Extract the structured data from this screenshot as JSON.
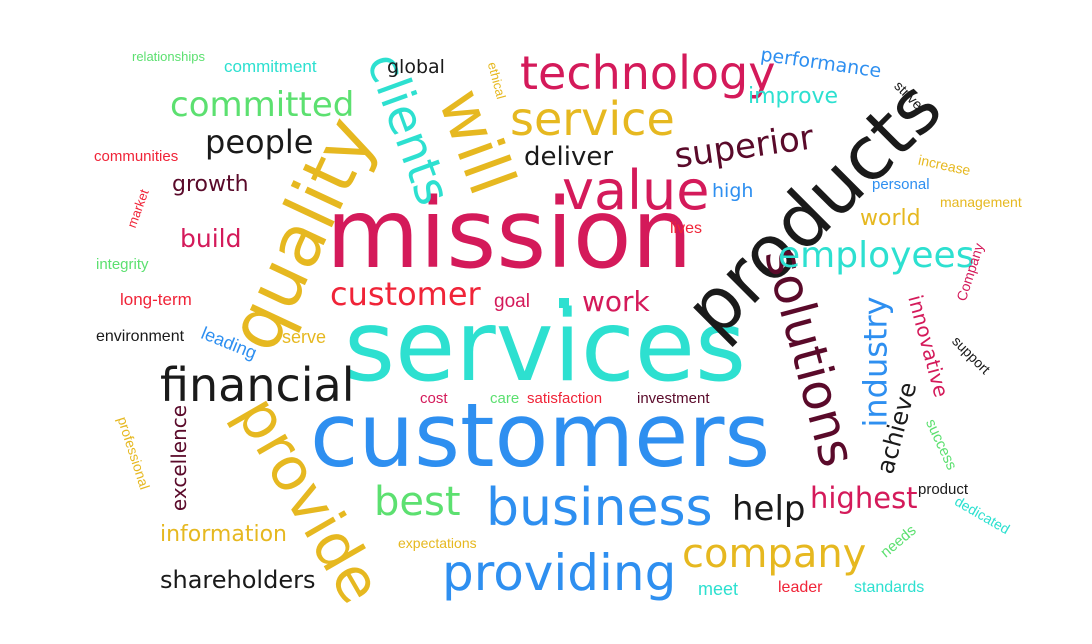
{
  "palette": {
    "crimson": "#d41a5a",
    "gold": "#e6b820",
    "teal": "#2de0d0",
    "blue": "#2e8ff0",
    "green": "#5ce070",
    "dark": "#1a1a1a",
    "maroon": "#5a0a2a",
    "red": "#f02438"
  },
  "words": {
    "mission": "mission",
    "services": "services",
    "customers": "customers",
    "products": "products",
    "quality": "quality",
    "provide": "provide",
    "value": "value",
    "will": "will",
    "technology": "technology",
    "service": "service",
    "clients": "clients",
    "solutions": "solutions",
    "financial": "financial",
    "business": "business",
    "providing": "providing",
    "company": "company",
    "employees": "employees",
    "superior": "superior",
    "committed": "committed",
    "customer": "customer",
    "industry": "industry",
    "best": "best",
    "people": "people",
    "highest": "highest",
    "help": "help",
    "work": "work",
    "deliver": "deliver",
    "shareholders": "shareholders",
    "build": "build",
    "growth": "growth",
    "information": "information",
    "excellence": "excellence",
    "innovative": "innovative",
    "achieve": "achieve",
    "world": "world",
    "improve": "improve",
    "performance": "performance",
    "high": "high",
    "global": "global",
    "commitment": "commitment",
    "relationships": "relationships",
    "communities": "communities",
    "long_term": "long-term",
    "integrity": "integrity",
    "environment": "environment",
    "leading": "leading",
    "serve": "serve",
    "goal": "goal",
    "cost": "cost",
    "care": "care",
    "satisfaction": "satisfaction",
    "investment": "investment",
    "lives": "lives",
    "personal": "personal",
    "management": "management",
    "increase": "increase",
    "strive": "strive",
    "company_cap": "Company",
    "support": "support",
    "success": "success",
    "product": "product",
    "dedicated": "dedicated",
    "needs": "needs",
    "standards": "standards",
    "leader": "leader",
    "meet": "meet",
    "expectations": "expectations",
    "professional": "professional",
    "market": "market",
    "ethical": "ethical"
  }
}
